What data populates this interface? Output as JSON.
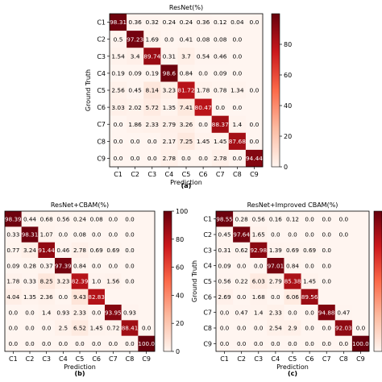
{
  "chart_data": [
    {
      "type": "heatmap",
      "title": "ResNet(%)",
      "xlabel": "Prediction",
      "ylabel": "Ground Truth",
      "caption": "(a)",
      "x_categories": [
        "C1",
        "C2",
        "C3",
        "C4",
        "C5",
        "C6",
        "C7",
        "C8",
        "C9"
      ],
      "y_categories": [
        "C1",
        "C2",
        "C3",
        "C4",
        "C5",
        "C6",
        "C7",
        "C8",
        "C9"
      ],
      "values": [
        [
          "98.31",
          "0.36",
          "0.32",
          "0.24",
          "0.24",
          "0.36",
          "0.12",
          "0.04",
          "0.0"
        ],
        [
          "0.5",
          "97.23",
          "1.69",
          "0.0",
          "0.41",
          "0.08",
          "0.08",
          "0.0",
          ""
        ],
        [
          "1.54",
          "3.4",
          "89.74",
          "0.31",
          "3.7",
          "0.54",
          "0.46",
          "0.0",
          ""
        ],
        [
          "0.19",
          "0.09",
          "0.19",
          "98.6",
          "0.84",
          "0.0",
          "0.09",
          "0.0",
          ""
        ],
        [
          "2.56",
          "0.45",
          "8.14",
          "3.23",
          "81.72",
          "1.78",
          "0.78",
          "1.34",
          "0.0"
        ],
        [
          "3.03",
          "2.02",
          "5.72",
          "1.35",
          "7.41",
          "80.47",
          "0.0",
          "0.0",
          ""
        ],
        [
          "0.0",
          "1.86",
          "2.33",
          "2.79",
          "3.26",
          "0.0",
          "88.37",
          "1.4",
          "0.0"
        ],
        [
          "0.0",
          "0.0",
          "0.0",
          "2.17",
          "7.25",
          "1.45",
          "1.45",
          "87.68",
          "0.0"
        ],
        [
          "0.0",
          "0.0",
          "0.0",
          "2.78",
          "0.0",
          "0.0",
          "2.78",
          "0.0",
          "94.44"
        ]
      ],
      "colorbar": {
        "ticks": [
          "0",
          "20",
          "40",
          "60",
          "80"
        ],
        "range": [
          0,
          100
        ]
      }
    },
    {
      "type": "heatmap",
      "title": "ResNet+CBAM(%)",
      "xlabel": "Prediction",
      "ylabel": "",
      "caption": "(b)",
      "x_categories": [
        "C1",
        "C2",
        "C3",
        "C4",
        "C5",
        "C6",
        "C7",
        "C8",
        "C9"
      ],
      "y_categories": [],
      "values": [
        [
          "98.39",
          "0.44",
          "0.68",
          "0.56",
          "0.24",
          "0.08",
          "0.0",
          "0.0",
          ""
        ],
        [
          "0.33",
          "98.31",
          "1.07",
          "0.0",
          "0.08",
          "0.0",
          "0.0",
          "0.0",
          ""
        ],
        [
          "0.77",
          "3.24",
          "91.44",
          "0.46",
          "2.78",
          "0.69",
          "0.69",
          "0.0",
          ""
        ],
        [
          "0.09",
          "0.28",
          "0.37",
          "97.39",
          "0.84",
          "0.0",
          "0.0",
          "0.0",
          ""
        ],
        [
          "1.78",
          "0.33",
          "8.25",
          "3.23",
          "82.39",
          "1.0",
          "1.56",
          "0.0",
          ""
        ],
        [
          "4.04",
          "1.35",
          "2.36",
          "0.0",
          "9.43",
          "82.83",
          "",
          "",
          ""
        ],
        [
          "0.0",
          "0.0",
          "1.4",
          "0.93",
          "2.33",
          "0.0",
          "93.95",
          "0.93",
          ""
        ],
        [
          "0.0",
          "0.0",
          "0.0",
          "2.5",
          "6.52",
          "1.45",
          "0.72",
          "88.41",
          "0.0"
        ],
        [
          "0.0",
          "0.0",
          "0.0",
          "0.0",
          "0.0",
          "0.0",
          "0.0",
          "0.0",
          "100.0"
        ]
      ],
      "colorbar": {
        "ticks": [
          "0",
          "20",
          "40",
          "60",
          "80",
          "100"
        ],
        "range": [
          0,
          100
        ]
      }
    },
    {
      "type": "heatmap",
      "title": "ResNet+Improved CBAM(%)",
      "xlabel": "Prediction",
      "ylabel": "Ground Truth",
      "caption": "(c)",
      "x_categories": [
        "C1",
        "C2",
        "C3",
        "C4",
        "C5",
        "C6",
        "C7",
        "C8",
        "C9"
      ],
      "y_categories": [
        "C1",
        "C2",
        "C3",
        "C4",
        "C5",
        "C6",
        "C7",
        "C8",
        "C9"
      ],
      "values": [
        [
          "98.55",
          "0.28",
          "0.56",
          "0.16",
          "0.12",
          "0.0",
          "0.0",
          "0.0",
          ""
        ],
        [
          "0.45",
          "97.64",
          "1.65",
          "0.0",
          "0.0",
          "0.0",
          "0.0",
          "0.0",
          ""
        ],
        [
          "0.31",
          "0.62",
          "92.98",
          "1.39",
          "0.69",
          "0.69",
          "0.0",
          "",
          ""
        ],
        [
          "0.09",
          "0.0",
          "0.0",
          "97.01",
          "0.84",
          "0.0",
          "0.0",
          "",
          ""
        ],
        [
          "0.56",
          "0.22",
          "6.03",
          "2.79",
          "85.38",
          "1.45",
          "0.0",
          "",
          ""
        ],
        [
          "2.69",
          "0.0",
          "1.68",
          "0.0",
          "6.06",
          "89.56",
          "",
          "",
          ""
        ],
        [
          "0.0",
          "0.47",
          "1.4",
          "2.33",
          "0.0",
          "0.0",
          "94.88",
          "0.47",
          ""
        ],
        [
          "0.0",
          "0.0",
          "0.0",
          "2.54",
          "2.9",
          "0.0",
          "0.0",
          "92.03",
          "0.0"
        ],
        [
          "0.0",
          "0.0",
          "0.0",
          "0.0",
          "0.0",
          "0.0",
          "0.0",
          "0.0",
          "100.0"
        ]
      ],
      "colorbar": {
        "ticks": [],
        "range": [
          0,
          100
        ]
      }
    }
  ]
}
